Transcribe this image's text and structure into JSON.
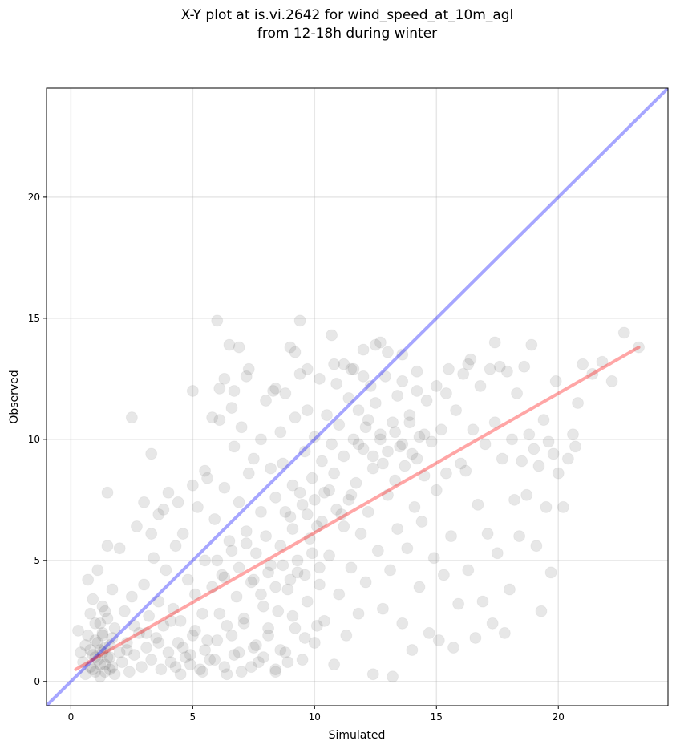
{
  "chart_data": {
    "type": "scatter",
    "title_line1": "X-Y plot at is.vi.2642 for wind_speed_at_10m_agl",
    "title_line2": "from 12-18h during winter",
    "xlabel": "Simulated",
    "ylabel": "Observed",
    "xlim": [
      -1,
      24.5
    ],
    "ylim": [
      -1,
      24.5
    ],
    "xticks": [
      0,
      5,
      10,
      15,
      20
    ],
    "yticks": [
      0,
      5,
      10,
      15,
      20
    ],
    "xtick_labels": [
      "0",
      "5",
      "10",
      "15",
      "20"
    ],
    "ytick_labels": [
      "0",
      "5",
      "10",
      "15",
      "20"
    ],
    "grid": true,
    "point_color": "#444444",
    "identity_line": {
      "color": "#0000ff",
      "x": [
        -1,
        24.5
      ],
      "y": [
        -1,
        24.5
      ]
    },
    "fit_line": {
      "color": "#ff0000",
      "x": [
        0.2,
        23.3
      ],
      "y": [
        0.5,
        13.8
      ]
    },
    "points": [
      [
        0.3,
        2.1
      ],
      [
        0.4,
        1.2
      ],
      [
        0.5,
        0.8
      ],
      [
        0.6,
        1.5
      ],
      [
        0.6,
        0.3
      ],
      [
        0.7,
        4.2
      ],
      [
        0.7,
        1.9
      ],
      [
        0.8,
        0.6
      ],
      [
        0.8,
        2.8
      ],
      [
        0.9,
        1.1
      ],
      [
        0.9,
        3.4
      ],
      [
        1.0,
        0.4
      ],
      [
        1.0,
        1.7
      ],
      [
        1.0,
        2.4
      ],
      [
        1.1,
        0.9
      ],
      [
        1.1,
        4.6
      ],
      [
        1.2,
        1.3
      ],
      [
        1.2,
        0.2
      ],
      [
        1.3,
        2.0
      ],
      [
        1.3,
        3.1
      ],
      [
        1.4,
        0.7
      ],
      [
        1.4,
        1.4
      ],
      [
        1.5,
        5.6
      ],
      [
        1.5,
        2.6
      ],
      [
        1.6,
        0.5
      ],
      [
        1.6,
        1.0
      ],
      [
        1.7,
        3.8
      ],
      [
        1.7,
        1.8
      ],
      [
        1.8,
        0.3
      ],
      [
        1.8,
        2.2
      ],
      [
        1.5,
        7.8
      ],
      [
        2.0,
        1.2
      ],
      [
        2.0,
        5.5
      ],
      [
        2.1,
        0.8
      ],
      [
        2.2,
        2.9
      ],
      [
        2.3,
        1.6
      ],
      [
        2.4,
        0.4
      ],
      [
        2.5,
        10.9
      ],
      [
        2.5,
        3.5
      ],
      [
        2.6,
        1.1
      ],
      [
        2.7,
        6.4
      ],
      [
        2.8,
        2.0
      ],
      [
        2.9,
        0.6
      ],
      [
        3.0,
        4.0
      ],
      [
        3.0,
        7.4
      ],
      [
        3.1,
        1.4
      ],
      [
        3.2,
        2.7
      ],
      [
        3.3,
        9.4
      ],
      [
        3.3,
        0.9
      ],
      [
        3.4,
        5.1
      ],
      [
        3.5,
        1.8
      ],
      [
        3.6,
        3.3
      ],
      [
        3.6,
        6.9
      ],
      [
        3.7,
        0.5
      ],
      [
        3.8,
        2.3
      ],
      [
        3.9,
        4.6
      ],
      [
        4.0,
        1.2
      ],
      [
        4.0,
        7.8
      ],
      [
        4.1,
        0.8
      ],
      [
        4.2,
        3.0
      ],
      [
        4.3,
        5.6
      ],
      [
        4.4,
        1.6
      ],
      [
        4.5,
        0.3
      ],
      [
        4.5,
        2.5
      ],
      [
        4.6,
        6.1
      ],
      [
        4.7,
        1.0
      ],
      [
        4.8,
        4.2
      ],
      [
        4.9,
        0.7
      ],
      [
        5.0,
        12.0
      ],
      [
        5.0,
        1.9
      ],
      [
        5.1,
        3.6
      ],
      [
        5.2,
        7.2
      ],
      [
        5.3,
        0.5
      ],
      [
        5.4,
        2.8
      ],
      [
        5.5,
        5.0
      ],
      [
        5.5,
        1.3
      ],
      [
        5.6,
        8.4
      ],
      [
        5.7,
        0.9
      ],
      [
        5.8,
        3.9
      ],
      [
        5.9,
        6.7
      ],
      [
        6.0,
        14.9
      ],
      [
        6.0,
        1.7
      ],
      [
        6.1,
        10.8
      ],
      [
        6.1,
        12.1
      ],
      [
        6.2,
        4.4
      ],
      [
        6.3,
        0.6
      ],
      [
        6.3,
        8.0
      ],
      [
        6.4,
        2.3
      ],
      [
        6.5,
        13.9
      ],
      [
        6.5,
        5.8
      ],
      [
        6.6,
        11.3
      ],
      [
        6.7,
        1.1
      ],
      [
        6.7,
        9.7
      ],
      [
        6.8,
        3.5
      ],
      [
        6.9,
        13.8
      ],
      [
        6.9,
        7.4
      ],
      [
        7.0,
        0.4
      ],
      [
        7.0,
        10.5
      ],
      [
        7.1,
        2.6
      ],
      [
        7.2,
        6.2
      ],
      [
        7.3,
        8.6
      ],
      [
        7.3,
        12.9
      ],
      [
        7.4,
        4.1
      ],
      [
        7.5,
        1.4
      ],
      [
        7.5,
        9.2
      ],
      [
        7.6,
        5.3
      ],
      [
        7.7,
        0.8
      ],
      [
        7.8,
        7.0
      ],
      [
        7.8,
        10.0
      ],
      [
        7.9,
        3.1
      ],
      [
        8.0,
        11.6
      ],
      [
        8.0,
        6.0
      ],
      [
        8.1,
        1.9
      ],
      [
        8.2,
        8.8
      ],
      [
        8.2,
        4.8
      ],
      [
        8.3,
        12.0
      ],
      [
        8.4,
        0.5
      ],
      [
        8.4,
        7.6
      ],
      [
        8.5,
        2.9
      ],
      [
        8.6,
        10.3
      ],
      [
        8.6,
        5.6
      ],
      [
        8.7,
        9.0
      ],
      [
        8.8,
        1.2
      ],
      [
        8.8,
        11.9
      ],
      [
        8.9,
        3.8
      ],
      [
        9.0,
        13.8
      ],
      [
        9.0,
        6.8
      ],
      [
        9.1,
        8.1
      ],
      [
        9.2,
        2.2
      ],
      [
        9.2,
        10.9
      ],
      [
        9.3,
        4.5
      ],
      [
        9.4,
        14.9
      ],
      [
        9.4,
        12.7
      ],
      [
        9.5,
        7.3
      ],
      [
        9.5,
        0.9
      ],
      [
        9.6,
        9.5
      ],
      [
        9.7,
        3.3
      ],
      [
        9.7,
        11.2
      ],
      [
        9.8,
        5.9
      ],
      [
        9.9,
        8.4
      ],
      [
        10.0,
        1.6
      ],
      [
        10.0,
        10.1
      ],
      [
        10.1,
        6.4
      ],
      [
        10.2,
        12.5
      ],
      [
        10.2,
        4.0
      ],
      [
        10.3,
        9.1
      ],
      [
        10.4,
        2.5
      ],
      [
        10.4,
        7.8
      ],
      [
        10.5,
        11.0
      ],
      [
        10.6,
        5.2
      ],
      [
        10.7,
        14.3
      ],
      [
        10.7,
        9.8
      ],
      [
        10.8,
        0.7
      ],
      [
        10.8,
        8.6
      ],
      [
        10.9,
        12.3
      ],
      [
        11.0,
        3.6
      ],
      [
        11.0,
        10.6
      ],
      [
        11.1,
        6.9
      ],
      [
        11.2,
        13.1
      ],
      [
        11.2,
        9.3
      ],
      [
        11.3,
        1.9
      ],
      [
        11.4,
        11.7
      ],
      [
        11.4,
        7.5
      ],
      [
        11.5,
        4.7
      ],
      [
        11.6,
        10.0
      ],
      [
        11.6,
        12.9
      ],
      [
        11.7,
        8.2
      ],
      [
        11.8,
        2.8
      ],
      [
        11.8,
        11.2
      ],
      [
        11.9,
        6.1
      ],
      [
        12.0,
        13.7
      ],
      [
        12.0,
        9.6
      ],
      [
        12.1,
        4.1
      ],
      [
        12.2,
        10.8
      ],
      [
        12.2,
        7.0
      ],
      [
        12.3,
        12.2
      ],
      [
        12.4,
        0.3
      ],
      [
        12.4,
        8.8
      ],
      [
        12.5,
        11.5
      ],
      [
        12.6,
        5.4
      ],
      [
        12.7,
        14.0
      ],
      [
        12.7,
        10.2
      ],
      [
        12.8,
        3.0
      ],
      [
        12.8,
        9.0
      ],
      [
        12.9,
        12.6
      ],
      [
        13.0,
        7.7
      ],
      [
        13.0,
        13.6
      ],
      [
        13.1,
        4.6
      ],
      [
        13.2,
        10.7
      ],
      [
        13.2,
        0.2
      ],
      [
        13.3,
        8.3
      ],
      [
        13.4,
        11.8
      ],
      [
        13.4,
        6.3
      ],
      [
        13.5,
        9.7
      ],
      [
        13.6,
        2.4
      ],
      [
        13.6,
        12.4
      ],
      [
        13.7,
        8.9
      ],
      [
        13.8,
        5.5
      ],
      [
        13.9,
        11.0
      ],
      [
        14.0,
        1.3
      ],
      [
        14.0,
        9.4
      ],
      [
        14.1,
        7.2
      ],
      [
        14.2,
        12.8
      ],
      [
        14.3,
        3.9
      ],
      [
        14.3,
        10.1
      ],
      [
        14.4,
        6.6
      ],
      [
        14.5,
        8.5
      ],
      [
        14.6,
        11.6
      ],
      [
        14.7,
        2.0
      ],
      [
        14.8,
        9.9
      ],
      [
        14.9,
        5.1
      ],
      [
        15.0,
        12.2
      ],
      [
        15.0,
        7.9
      ],
      [
        15.1,
        1.7
      ],
      [
        15.2,
        10.4
      ],
      [
        15.3,
        4.4
      ],
      [
        15.4,
        8.6
      ],
      [
        15.5,
        12.9
      ],
      [
        15.6,
        6.0
      ],
      [
        15.7,
        1.4
      ],
      [
        15.8,
        11.2
      ],
      [
        15.9,
        3.2
      ],
      [
        16.0,
        9.0
      ],
      [
        16.1,
        12.7
      ],
      [
        16.2,
        8.7
      ],
      [
        16.3,
        4.6
      ],
      [
        16.4,
        13.3
      ],
      [
        16.5,
        10.4
      ],
      [
        16.6,
        1.8
      ],
      [
        16.7,
        7.3
      ],
      [
        16.8,
        12.2
      ],
      [
        16.9,
        3.3
      ],
      [
        17.0,
        9.8
      ],
      [
        17.1,
        6.1
      ],
      [
        17.2,
        12.9
      ],
      [
        17.3,
        2.4
      ],
      [
        17.4,
        10.7
      ],
      [
        17.5,
        5.3
      ],
      [
        17.6,
        13.0
      ],
      [
        17.7,
        9.2
      ],
      [
        17.8,
        2.0
      ],
      [
        17.9,
        12.8
      ],
      [
        18.0,
        3.8
      ],
      [
        18.1,
        10.0
      ],
      [
        18.2,
        7.5
      ],
      [
        18.3,
        11.9
      ],
      [
        18.4,
        6.0
      ],
      [
        18.5,
        9.1
      ],
      [
        18.6,
        13.0
      ],
      [
        18.7,
        7.7
      ],
      [
        18.8,
        10.2
      ],
      [
        18.9,
        13.9
      ],
      [
        19.0,
        9.6
      ],
      [
        19.1,
        5.6
      ],
      [
        19.2,
        8.9
      ],
      [
        19.3,
        2.9
      ],
      [
        19.4,
        10.8
      ],
      [
        19.5,
        7.2
      ],
      [
        19.6,
        9.9
      ],
      [
        19.7,
        4.5
      ],
      [
        19.8,
        9.4
      ],
      [
        19.9,
        12.4
      ],
      [
        20.0,
        8.6
      ],
      [
        20.2,
        7.2
      ],
      [
        20.4,
        9.2
      ],
      [
        20.6,
        10.2
      ],
      [
        20.7,
        9.7
      ],
      [
        20.8,
        11.5
      ],
      [
        21.0,
        13.1
      ],
      [
        21.4,
        12.7
      ],
      [
        21.8,
        13.2
      ],
      [
        22.2,
        12.4
      ],
      [
        22.7,
        14.4
      ],
      [
        23.3,
        13.8
      ],
      [
        17.4,
        14.0
      ],
      [
        16.3,
        13.1
      ],
      [
        15.4,
        11.9
      ],
      [
        14.2,
        12.0
      ],
      [
        13.6,
        13.5
      ],
      [
        12.5,
        13.9
      ],
      [
        12.0,
        12.6
      ],
      [
        11.5,
        12.9
      ],
      [
        10.8,
        13.1
      ],
      [
        9.7,
        12.9
      ],
      [
        9.2,
        13.6
      ],
      [
        8.4,
        12.1
      ],
      [
        7.2,
        12.6
      ],
      [
        6.7,
        12.0
      ],
      [
        6.3,
        12.5
      ],
      [
        5.8,
        10.9
      ],
      [
        1.2,
        2.4
      ],
      [
        1.3,
        1.9
      ],
      [
        1.4,
        2.9
      ],
      [
        2.3,
        1.3
      ],
      [
        2.6,
        2.3
      ],
      [
        3.1,
        2.0
      ],
      [
        3.6,
        1.6
      ],
      [
        4.1,
        2.5
      ],
      [
        4.6,
        1.4
      ],
      [
        5.1,
        2.1
      ],
      [
        5.6,
        1.7
      ],
      [
        6.1,
        2.8
      ],
      [
        6.6,
        1.9
      ],
      [
        7.1,
        2.4
      ],
      [
        7.6,
        1.5
      ],
      [
        8.1,
        2.2
      ],
      [
        8.6,
        1.3
      ],
      [
        9.1,
        2.7
      ],
      [
        9.6,
        1.8
      ],
      [
        10.1,
        2.3
      ],
      [
        4.3,
        0.6
      ],
      [
        4.9,
        1.1
      ],
      [
        5.4,
        0.4
      ],
      [
        5.9,
        0.9
      ],
      [
        6.4,
        0.3
      ],
      [
        6.9,
        1.2
      ],
      [
        7.4,
        0.6
      ],
      [
        7.9,
        1.0
      ],
      [
        8.4,
        0.4
      ],
      [
        8.9,
        0.8
      ],
      [
        0.8,
        1.3
      ],
      [
        0.9,
        0.5
      ],
      [
        1.0,
        1.0
      ],
      [
        1.1,
        1.6
      ],
      [
        1.2,
        0.7
      ],
      [
        1.3,
        1.2
      ],
      [
        1.4,
        0.4
      ],
      [
        1.5,
        1.0
      ],
      [
        1.6,
        1.5
      ],
      [
        1.7,
        0.6
      ],
      [
        8.8,
        7.0
      ],
      [
        9.1,
        6.3
      ],
      [
        9.4,
        7.8
      ],
      [
        9.7,
        6.9
      ],
      [
        10.0,
        7.5
      ],
      [
        10.3,
        6.6
      ],
      [
        10.6,
        7.9
      ],
      [
        10.9,
        7.1
      ],
      [
        11.2,
        6.4
      ],
      [
        11.5,
        7.7
      ],
      [
        11.8,
        9.8
      ],
      [
        12.1,
        10.5
      ],
      [
        12.4,
        9.3
      ],
      [
        12.7,
        10.0
      ],
      [
        13.0,
        9.5
      ],
      [
        13.3,
        10.3
      ],
      [
        13.6,
        9.8
      ],
      [
        13.9,
        10.7
      ],
      [
        14.2,
        9.2
      ],
      [
        14.5,
        10.2
      ],
      [
        7.5,
        4.2
      ],
      [
        7.8,
        3.6
      ],
      [
        8.1,
        4.5
      ],
      [
        8.4,
        3.9
      ],
      [
        8.7,
        4.8
      ],
      [
        9.0,
        4.2
      ],
      [
        9.3,
        5.0
      ],
      [
        9.6,
        4.4
      ],
      [
        9.9,
        5.3
      ],
      [
        10.2,
        4.7
      ],
      [
        6.0,
        5.0
      ],
      [
        6.3,
        4.3
      ],
      [
        6.6,
        5.4
      ],
      [
        6.9,
        4.7
      ],
      [
        7.2,
        5.7
      ],
      [
        3.3,
        6.1
      ],
      [
        3.8,
        7.1
      ],
      [
        4.4,
        7.4
      ],
      [
        5.0,
        8.1
      ],
      [
        5.5,
        8.7
      ]
    ]
  }
}
